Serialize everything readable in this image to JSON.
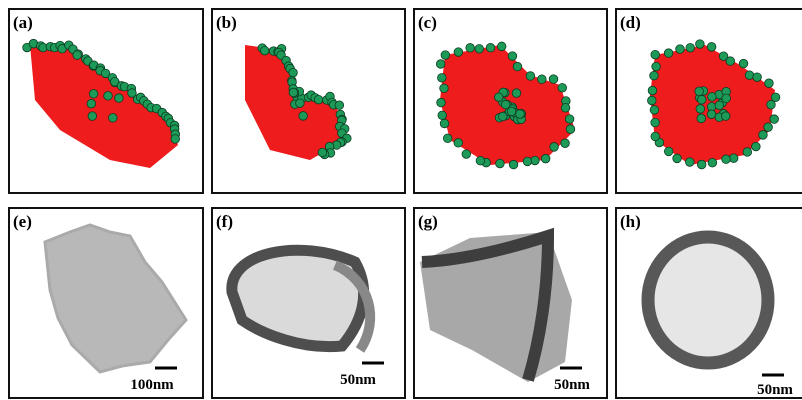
{
  "panels": [
    {
      "label": "(a)"
    },
    {
      "label": "(b)"
    },
    {
      "label": "(c)"
    },
    {
      "label": "(d)"
    },
    {
      "label": "(e)",
      "scale_bar": "100nm"
    },
    {
      "label": "(f)",
      "scale_bar": "50nm"
    },
    {
      "label": "(g)",
      "scale_bar": "50nm"
    },
    {
      "label": "(h)",
      "scale_bar": "50nm"
    }
  ]
}
